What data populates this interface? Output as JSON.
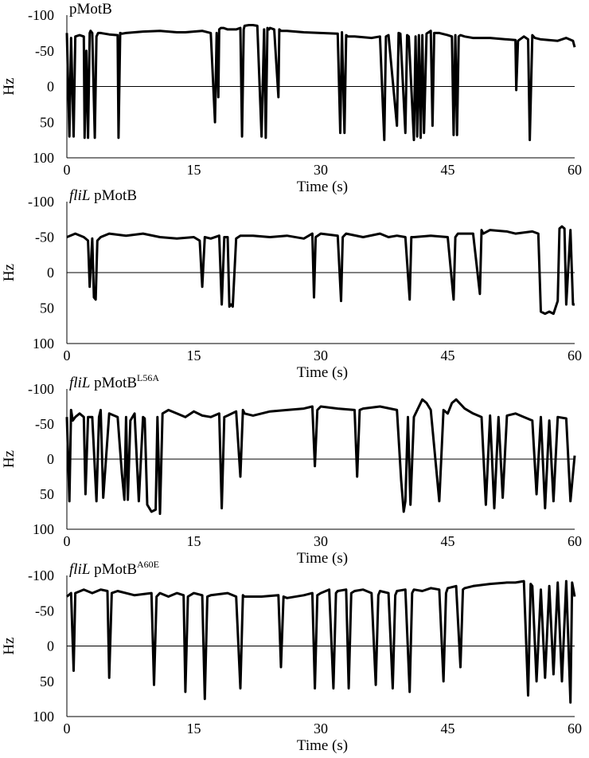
{
  "chart_data": [
    {
      "type": "line",
      "title_parts": [
        {
          "text": "pMotB",
          "style": "normal"
        }
      ],
      "xlabel": "Time (s)",
      "ylabel": "Hz",
      "xlim": [
        0,
        60
      ],
      "ylim": [
        -100,
        100
      ],
      "y_inverted": true,
      "x_ticks": [
        "0",
        "15",
        "30",
        "45",
        "60"
      ],
      "y_ticks": [
        "-100",
        "-50",
        "0",
        "50",
        "100"
      ],
      "grid": false,
      "series": [
        {
          "color": "#000000",
          "x": [
            0,
            0.3,
            0.5,
            0.8,
            1.0,
            1.5,
            2.0,
            2.1,
            2.3,
            2.5,
            2.7,
            2.8,
            3.0,
            3.3,
            3.5,
            3.7,
            4.0,
            5.0,
            6.0,
            6.1,
            6.3,
            6.5,
            7.0,
            9.0,
            11.0,
            13.0,
            14.0,
            16.0,
            17.0,
            17.5,
            17.7,
            17.9,
            18.0,
            18.2,
            18.5,
            19.0,
            20.0,
            20.5,
            20.7,
            20.9,
            21.0,
            21.5,
            22.0,
            22.5,
            23.0,
            23.3,
            23.5,
            23.7,
            23.9,
            24.0,
            24.5,
            25.0,
            25.1,
            25.3,
            26.0,
            28.0,
            30.0,
            32.0,
            32.3,
            32.5,
            32.8,
            33.0,
            33.2,
            34.0,
            36.0,
            37.0,
            37.5,
            37.7,
            38.0,
            39.0,
            39.2,
            39.4,
            40.0,
            40.2,
            40.4,
            41.0,
            41.2,
            41.4,
            41.6,
            41.8,
            42.0,
            42.2,
            42.5,
            43.0,
            43.2,
            43.4,
            44.0,
            45.0,
            45.5,
            45.7,
            45.9,
            46.1,
            46.3,
            46.5,
            47.0,
            48.0,
            50.0,
            52.0,
            53.0,
            53.1,
            53.3,
            54.0,
            54.5,
            54.7,
            55.0,
            55.3,
            56.0,
            58.0,
            59.0,
            59.8,
            60.0
          ],
          "values": [
            -75,
            70,
            -68,
            70,
            -70,
            -72,
            -70,
            72,
            -50,
            72,
            -75,
            -78,
            -75,
            72,
            -70,
            -75,
            -75,
            -73,
            -72,
            72,
            -75,
            -74,
            -75,
            -77,
            -78,
            -76,
            -76,
            -78,
            -75,
            50,
            -75,
            15,
            -80,
            -82,
            -82,
            -80,
            -80,
            -82,
            70,
            -80,
            -85,
            -86,
            -86,
            -85,
            70,
            -80,
            72,
            -82,
            -80,
            -82,
            -80,
            15,
            -80,
            -78,
            -78,
            -76,
            -75,
            -74,
            65,
            -76,
            65,
            -72,
            -70,
            -70,
            -68,
            -70,
            75,
            -70,
            -72,
            55,
            -75,
            -74,
            65,
            -72,
            -70,
            75,
            -70,
            70,
            -72,
            72,
            -72,
            65,
            -74,
            -78,
            55,
            -75,
            -75,
            -72,
            -70,
            68,
            -72,
            68,
            -70,
            -72,
            -70,
            -68,
            -68,
            -66,
            -65,
            5,
            -64,
            -70,
            -66,
            75,
            -72,
            -68,
            -66,
            -64,
            -68,
            -64,
            -55
          ]
        }
      ]
    },
    {
      "type": "line",
      "title_parts": [
        {
          "text": "fliL",
          "style": "italic"
        },
        {
          "text": " pMotB",
          "style": "normal"
        }
      ],
      "xlabel": "Time (s)",
      "ylabel": "Hz",
      "xlim": [
        0,
        60
      ],
      "ylim": [
        -100,
        100
      ],
      "y_inverted": true,
      "x_ticks": [
        "0",
        "15",
        "30",
        "45",
        "60"
      ],
      "y_ticks": [
        "-100",
        "-50",
        "0",
        "50",
        "100"
      ],
      "grid": false,
      "series": [
        {
          "color": "#000000",
          "x": [
            0,
            1.0,
            2.0,
            2.5,
            2.7,
            3.0,
            3.2,
            3.4,
            3.6,
            4.0,
            5.0,
            7.0,
            9.0,
            11.0,
            13.0,
            15.0,
            15.7,
            16.0,
            16.3,
            17.0,
            18.0,
            18.3,
            18.6,
            19.0,
            19.2,
            19.4,
            19.6,
            20.0,
            20.5,
            22.0,
            24.0,
            26.0,
            28.0,
            29.0,
            29.2,
            29.4,
            30.0,
            32.0,
            32.4,
            32.6,
            33.0,
            35.0,
            37.0,
            38.0,
            39.0,
            40.0,
            40.5,
            40.7,
            41.0,
            43.0,
            45.0,
            45.7,
            45.9,
            46.2,
            48.0,
            48.8,
            49.0,
            49.2,
            50.0,
            52.0,
            53.0,
            55.0,
            55.7,
            56.0,
            56.5,
            57.0,
            57.5,
            58.0,
            58.2,
            58.5,
            58.8,
            59.0,
            59.5,
            59.8,
            60.0
          ],
          "values": [
            -50,
            -55,
            -50,
            -45,
            20,
            -48,
            35,
            38,
            -45,
            -50,
            -55,
            -52,
            -55,
            -50,
            -48,
            -50,
            -45,
            20,
            -50,
            -48,
            -52,
            45,
            -50,
            -50,
            48,
            45,
            48,
            -48,
            -52,
            -52,
            -50,
            -52,
            -48,
            -55,
            35,
            -50,
            -55,
            -52,
            40,
            -50,
            -55,
            -50,
            -55,
            -50,
            -52,
            -50,
            38,
            -50,
            -50,
            -52,
            -50,
            38,
            -50,
            -55,
            -55,
            30,
            -60,
            -55,
            -60,
            -58,
            -55,
            -58,
            -55,
            55,
            58,
            55,
            58,
            40,
            -62,
            -65,
            -62,
            45,
            -60,
            45,
            45
          ]
        }
      ]
    },
    {
      "type": "line",
      "title_parts": [
        {
          "text": "fliL",
          "style": "italic"
        },
        {
          "text": " pMotB",
          "style": "normal"
        },
        {
          "text": "L56A",
          "style": "sup"
        }
      ],
      "xlabel": "Time (s)",
      "ylabel": "Hz",
      "xlim": [
        0,
        60
      ],
      "ylim": [
        -100,
        100
      ],
      "y_inverted": true,
      "x_ticks": [
        "0",
        "15",
        "30",
        "45",
        "60"
      ],
      "y_ticks": [
        "-100",
        "-50",
        "0",
        "50",
        "100"
      ],
      "grid": false,
      "series": [
        {
          "color": "#000000",
          "x": [
            0,
            0.3,
            0.5,
            0.7,
            1.0,
            1.5,
            2.0,
            2.2,
            2.5,
            3.0,
            3.5,
            3.8,
            4.0,
            4.3,
            5.0,
            6.0,
            6.5,
            6.8,
            7.0,
            7.2,
            7.5,
            8.0,
            8.5,
            9.0,
            9.2,
            9.5,
            10.0,
            10.5,
            10.7,
            11.0,
            11.3,
            12.0,
            13.0,
            14.0,
            15.0,
            16.0,
            17.0,
            18.0,
            18.3,
            18.6,
            19.0,
            20.0,
            20.5,
            20.8,
            21.0,
            22.0,
            24.0,
            26.0,
            28.0,
            29.0,
            29.3,
            29.6,
            30.0,
            32.0,
            34.0,
            34.3,
            34.6,
            35.0,
            37.0,
            39.0,
            39.5,
            39.8,
            40.0,
            40.3,
            40.6,
            41.0,
            42.0,
            42.5,
            43.0,
            44.0,
            44.5,
            45.0,
            45.5,
            46.0,
            47.0,
            48.0,
            49.0,
            49.5,
            50.0,
            50.5,
            51.0,
            51.5,
            52.0,
            53.0,
            54.0,
            55.0,
            55.5,
            56.0,
            56.5,
            57.0,
            57.5,
            58.0,
            59.0,
            59.5,
            60.0
          ],
          "values": [
            -60,
            60,
            -70,
            -55,
            -60,
            -65,
            -60,
            50,
            -60,
            -60,
            60,
            -60,
            -70,
            55,
            -65,
            -60,
            20,
            58,
            -60,
            58,
            -55,
            -65,
            60,
            -60,
            -58,
            65,
            75,
            72,
            -60,
            78,
            -65,
            -70,
            -65,
            -60,
            -68,
            -62,
            -60,
            -65,
            70,
            -60,
            -62,
            -68,
            25,
            -70,
            -65,
            -62,
            -68,
            -70,
            -72,
            -75,
            10,
            -70,
            -75,
            -72,
            -70,
            25,
            -70,
            -72,
            -75,
            -70,
            30,
            75,
            60,
            -60,
            65,
            -60,
            -85,
            -80,
            -70,
            60,
            -70,
            -65,
            -80,
            -85,
            -72,
            -65,
            -60,
            65,
            -62,
            70,
            -60,
            55,
            -62,
            -65,
            -60,
            -55,
            50,
            -60,
            70,
            -55,
            60,
            -60,
            -58,
            60,
            -5
          ]
        }
      ]
    },
    {
      "type": "line",
      "title_parts": [
        {
          "text": "fliL",
          "style": "italic"
        },
        {
          "text": " pMotB",
          "style": "normal"
        },
        {
          "text": "A60E",
          "style": "sup"
        }
      ],
      "xlabel": "Time (s)",
      "ylabel": "Hz",
      "xlim": [
        0,
        60
      ],
      "ylim": [
        -100,
        100
      ],
      "y_inverted": true,
      "x_ticks": [
        "0",
        "15",
        "30",
        "45",
        "60"
      ],
      "y_ticks": [
        "-100",
        "-50",
        "0",
        "50",
        "100"
      ],
      "grid": false,
      "series": [
        {
          "color": "#000000",
          "x": [
            0,
            0.5,
            0.8,
            1.0,
            2.0,
            3.0,
            4.0,
            4.8,
            5.0,
            5.3,
            6.0,
            8.0,
            10.0,
            10.3,
            10.6,
            11.0,
            12.0,
            13.0,
            13.8,
            14.0,
            14.3,
            15.0,
            16.0,
            16.3,
            16.6,
            17.0,
            19.0,
            20.0,
            20.5,
            20.8,
            21.0,
            23.0,
            25.0,
            25.3,
            25.6,
            26.0,
            28.0,
            29.0,
            29.3,
            29.6,
            30.0,
            31.0,
            31.5,
            31.8,
            32.0,
            33.0,
            33.3,
            33.6,
            34.0,
            35.0,
            36.0,
            36.5,
            36.8,
            37.0,
            38.0,
            38.5,
            38.8,
            39.0,
            40.0,
            40.5,
            40.8,
            41.0,
            42.0,
            43.0,
            44.0,
            44.5,
            44.8,
            45.0,
            46.0,
            46.5,
            46.8,
            47.0,
            48.0,
            50.0,
            52.0,
            53.0,
            54.0,
            54.5,
            54.8,
            55.0,
            55.5,
            56.0,
            56.5,
            57.0,
            57.5,
            58.0,
            58.5,
            59.0,
            59.5,
            59.7,
            60.0
          ],
          "values": [
            -70,
            -75,
            35,
            -75,
            -80,
            -75,
            -80,
            -78,
            45,
            -75,
            -78,
            -72,
            -75,
            55,
            -70,
            -75,
            -70,
            -75,
            -72,
            65,
            -70,
            -75,
            -72,
            75,
            -70,
            -72,
            -75,
            -70,
            60,
            -72,
            -70,
            -70,
            -72,
            30,
            -70,
            -68,
            -72,
            -75,
            60,
            -72,
            -75,
            -80,
            60,
            -75,
            -78,
            -80,
            60,
            -75,
            -78,
            -80,
            -75,
            55,
            -72,
            -78,
            -75,
            60,
            -72,
            -78,
            -80,
            65,
            -75,
            -80,
            -78,
            -82,
            -80,
            50,
            -75,
            -82,
            -85,
            30,
            -80,
            -82,
            -85,
            -88,
            -90,
            -90,
            -92,
            70,
            -88,
            -85,
            50,
            -80,
            45,
            -85,
            40,
            -90,
            50,
            -92,
            80,
            -90,
            -70
          ]
        }
      ]
    }
  ]
}
